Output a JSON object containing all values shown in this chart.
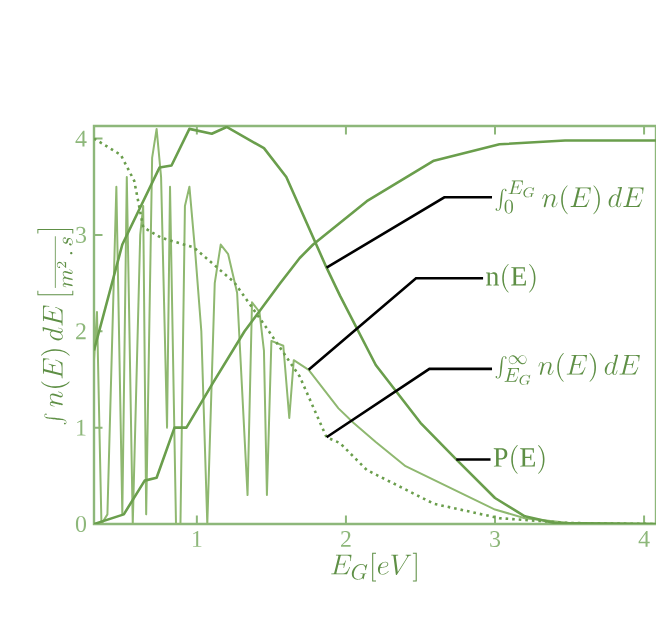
{
  "chart_data": {
    "type": "line",
    "xlabel": "E_G[eV]",
    "ylabel": "\\int n(E)\\,dE\\left[\\frac{}{m^2\\,.\\,s}\\right]",
    "xlim": [
      0.31,
      4.08
    ],
    "ylim": [
      0,
      4.13
    ],
    "xticks": [
      1,
      2,
      3,
      4
    ],
    "yticks": [
      0,
      1,
      2,
      3,
      4
    ],
    "grid": false,
    "marker": "none",
    "series": [
      {
        "color": "#8fb870",
        "line_style": "solid",
        "x": [
          0.31,
          0.33,
          0.36,
          0.4,
          0.46,
          0.5,
          0.53,
          0.57,
          0.62,
          0.64,
          0.66,
          0.7,
          0.73,
          0.76,
          0.8,
          0.82,
          0.86,
          0.89,
          0.92,
          0.95,
          0.99,
          1.03,
          1.07,
          1.12,
          1.16,
          1.21,
          1.27,
          1.3,
          1.34,
          1.37,
          1.42,
          1.45,
          1.47,
          1.5,
          1.58,
          1.62,
          1.65,
          1.75,
          1.85,
          1.95,
          2.05,
          2.2,
          2.4,
          2.6,
          2.8,
          3.0,
          3.2,
          3.5,
          4.08
        ],
        "values": [
          1.7,
          2.2,
          0.0,
          0.1,
          3.5,
          0.1,
          3.6,
          0.0,
          3.0,
          3.3,
          0.1,
          3.8,
          4.1,
          3.6,
          1.0,
          3.5,
          0.0,
          0.0,
          3.3,
          3.5,
          2.8,
          2.0,
          0.0,
          2.5,
          2.9,
          2.8,
          2.4,
          1.5,
          0.3,
          2.3,
          2.2,
          1.8,
          0.3,
          1.9,
          1.85,
          1.1,
          1.7,
          1.6,
          1.4,
          1.2,
          1.05,
          0.85,
          0.6,
          0.45,
          0.3,
          0.15,
          0.06,
          0.01,
          0
        ]
      },
      {
        "color": "#6a9e4c",
        "line_style": "solid",
        "x": [
          0.31,
          0.51,
          0.65,
          0.73,
          0.85,
          0.93,
          1.11,
          1.32,
          1.56,
          1.69,
          1.78,
          2.14,
          2.59,
          3.03,
          3.47,
          4.08
        ],
        "values": [
          0,
          0.1,
          0.45,
          0.48,
          1.0,
          1.0,
          1.47,
          2.0,
          2.5,
          2.76,
          2.9,
          3.35,
          3.77,
          3.94,
          3.98,
          3.98
        ]
      },
      {
        "color": "#6a9e4c",
        "line_style": "dotted",
        "x": [
          0.31,
          0.49,
          0.58,
          0.64,
          0.76,
          0.98,
          1.25,
          1.47,
          1.69,
          1.87,
          1.96,
          2.14,
          2.59,
          3.03,
          3.5,
          4.08
        ],
        "values": [
          4.0,
          3.83,
          3.56,
          3.08,
          2.97,
          2.87,
          2.51,
          2.03,
          1.53,
          0.9,
          0.84,
          0.56,
          0.21,
          0.06,
          0.01,
          0
        ]
      },
      {
        "color": "#6a9e4c",
        "line_style": "solid",
        "x": [
          0.31,
          0.5,
          0.75,
          0.83,
          0.95,
          1.1,
          1.2,
          1.45,
          1.6,
          1.87,
          1.96,
          2.2,
          2.5,
          2.74,
          3.0,
          3.2,
          3.4,
          4.08
        ],
        "values": [
          1.8,
          2.9,
          3.7,
          3.72,
          4.1,
          4.05,
          4.12,
          3.9,
          3.6,
          2.66,
          2.37,
          1.65,
          1.05,
          0.67,
          0.27,
          0.08,
          0.01,
          0
        ]
      }
    ],
    "annotations": [
      {
        "text": "\\int_0^{E_G} n(E)\\,dE",
        "x": 1.87,
        "y": 2.66
      },
      {
        "text": "\\mathrm{n(E)}",
        "x": 1.75,
        "y": 1.6
      },
      {
        "text": "\\int_{E_G}^{\\infty} n(E)\\,dE",
        "x": 1.87,
        "y": 0.9
      },
      {
        "text": "\\mathrm{P(E)}",
        "x": 2.74,
        "y": 0.67
      }
    ]
  }
}
